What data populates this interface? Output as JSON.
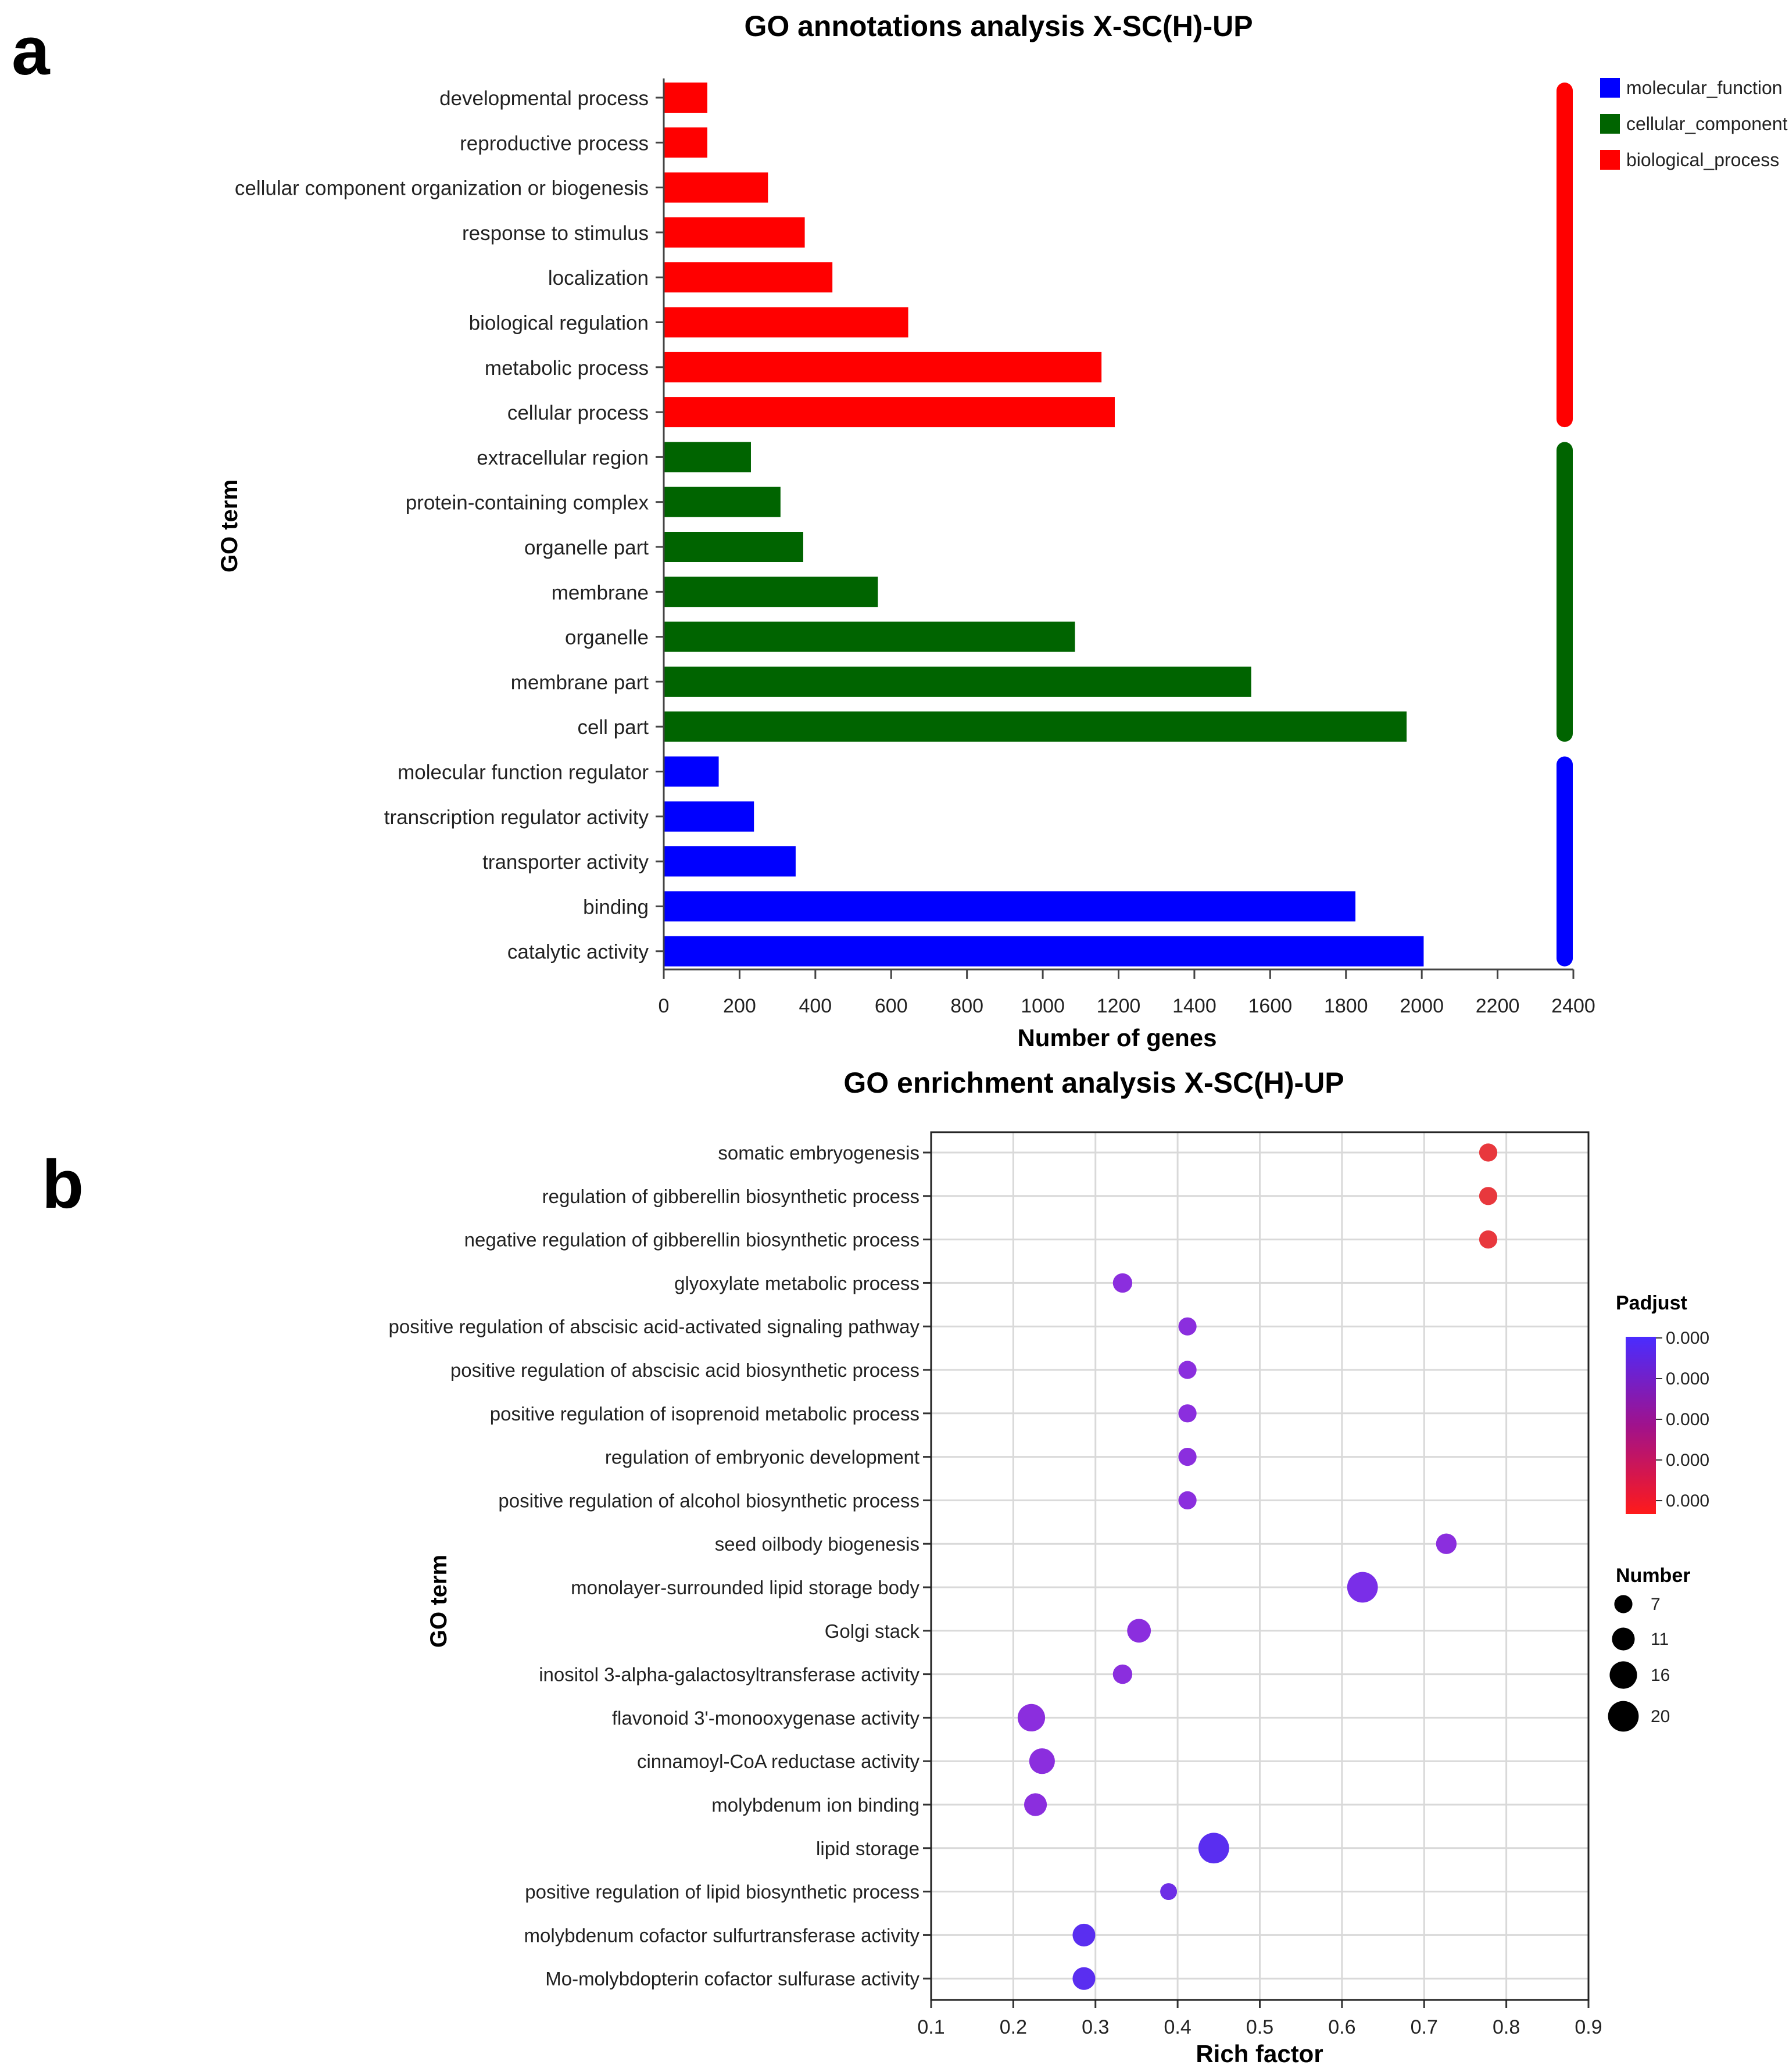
{
  "panels": {
    "a": "a",
    "b": "b"
  },
  "chart_data": [
    {
      "type": "bar",
      "orientation": "horizontal",
      "title": "GO annotations analysis X-SC(H)-UP",
      "xlabel": "Number of genes",
      "ylabel": "GO term",
      "xlim": [
        0,
        2400
      ],
      "xticks": [
        "0",
        "200",
        "400",
        "600",
        "800",
        "1000",
        "1200",
        "1400",
        "1600",
        "1800",
        "2000",
        "2200",
        "2400"
      ],
      "categories": [
        "developmental process",
        "reproductive process",
        "cellular component organization or biogenesis",
        "response to stimulus",
        "localization",
        "biological regulation",
        "metabolic process",
        "cellular process",
        "extracellular region",
        "protein-containing complex",
        "organelle part",
        "membrane",
        "organelle",
        "membrane part",
        "cell part",
        "molecular function regulator",
        "transcription regulator activity",
        "transporter activity",
        "binding",
        "catalytic activity"
      ],
      "values": [
        115,
        115,
        275,
        372,
        445,
        645,
        1155,
        1190,
        230,
        308,
        368,
        565,
        1085,
        1550,
        1960,
        145,
        238,
        348,
        1825,
        2005
      ],
      "groups": [
        "biological_process",
        "biological_process",
        "biological_process",
        "biological_process",
        "biological_process",
        "biological_process",
        "biological_process",
        "biological_process",
        "cellular_component",
        "cellular_component",
        "cellular_component",
        "cellular_component",
        "cellular_component",
        "cellular_component",
        "cellular_component",
        "molecular_function",
        "molecular_function",
        "molecular_function",
        "molecular_function",
        "molecular_function"
      ],
      "legend": [
        {
          "label": "molecular_function",
          "color": "#0000ff"
        },
        {
          "label": "cellular_component",
          "color": "#006400"
        },
        {
          "label": "biological_process",
          "color": "#ff0000"
        }
      ],
      "legend_position": "top-right"
    },
    {
      "type": "scatter",
      "title": "GO enrichment analysis X-SC(H)-UP",
      "xlabel": "Rich factor",
      "ylabel": "GO term",
      "xlim": [
        0.1,
        0.9
      ],
      "xticks": [
        "0.1",
        "0.2",
        "0.3",
        "0.4",
        "0.5",
        "0.6",
        "0.7",
        "0.8",
        "0.9"
      ],
      "grid": true,
      "terms": [
        "somatic embryogenesis",
        "regulation of gibberellin biosynthetic process",
        "negative regulation of gibberellin biosynthetic process",
        "glyoxylate metabolic process",
        "positive regulation of abscisic acid-activated signaling pathway",
        "positive regulation of abscisic acid biosynthetic process",
        "positive regulation of isoprenoid metabolic process",
        "regulation of embryonic development",
        "positive regulation of alcohol biosynthetic process",
        "seed oilbody biogenesis",
        "monolayer-surrounded lipid storage body",
        "Golgi stack",
        "inositol 3-alpha-galactosyltransferase activity",
        "flavonoid 3'-monooxygenase activity",
        "cinnamoyl-CoA reductase activity",
        "molybdenum ion binding",
        "lipid storage",
        "positive regulation of lipid biosynthetic process",
        "molybdenum cofactor sulfurtransferase activity",
        "Mo-molybdopterin cofactor sulfurase activity"
      ],
      "rich_factor": [
        0.778,
        0.778,
        0.778,
        0.333,
        0.412,
        0.412,
        0.412,
        0.412,
        0.412,
        0.727,
        0.625,
        0.353,
        0.333,
        0.222,
        0.235,
        0.227,
        0.444,
        0.389,
        0.286,
        0.286
      ],
      "number": [
        7,
        7,
        7,
        8,
        7,
        7,
        7,
        7,
        7,
        9,
        20,
        12,
        8,
        16,
        14,
        11,
        20,
        6,
        11,
        11
      ],
      "colors": [
        "#e8383d",
        "#e8383d",
        "#e8383d",
        "#8b2ede",
        "#8b2ede",
        "#8b2ede",
        "#8b2ede",
        "#8b2ede",
        "#8b2ede",
        "#8b2ede",
        "#7a2ee8",
        "#8b2ede",
        "#8b2ede",
        "#8b2ede",
        "#8b2ede",
        "#8b2ede",
        "#5a2ef0",
        "#6e2ee6",
        "#5a2ef0",
        "#5a2ef0"
      ],
      "legend_padjust": {
        "title": "Padjust",
        "labels": [
          "0.000",
          "0.000",
          "0.000",
          "0.000",
          "0.000"
        ],
        "color_high": "#4a2cff",
        "color_low": "#ff1a1a"
      },
      "legend_number": {
        "title": "Number",
        "labels": [
          "7",
          "11",
          "16",
          "20"
        ]
      }
    }
  ]
}
